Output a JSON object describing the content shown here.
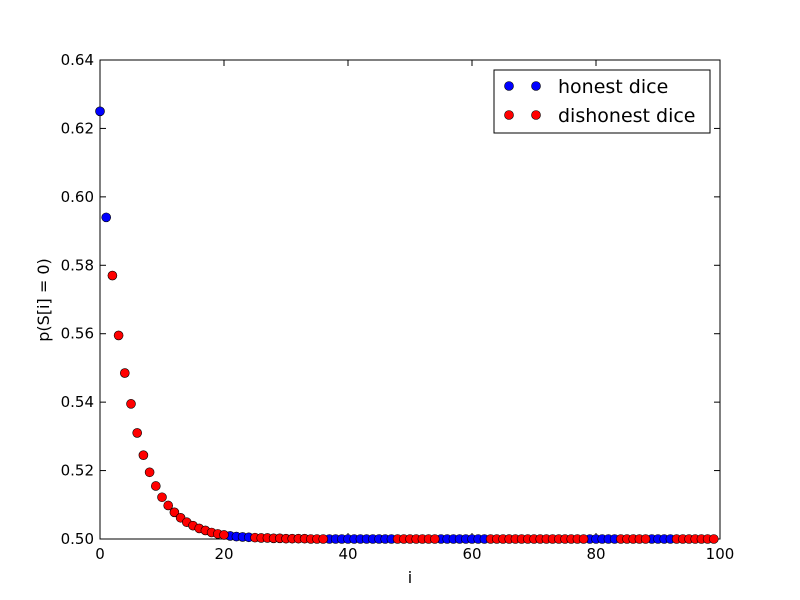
{
  "chart_data": {
    "type": "scatter",
    "xlabel": "i",
    "ylabel": "p(S[i] = 0)",
    "xlim": [
      0,
      100
    ],
    "ylim": [
      0.5,
      0.64
    ],
    "xticks": [
      0,
      20,
      40,
      60,
      80,
      100
    ],
    "xtick_labels": [
      "0",
      "20",
      "40",
      "60",
      "80",
      "100"
    ],
    "yticks": [
      0.5,
      0.52,
      0.54,
      0.56,
      0.58,
      0.6,
      0.62,
      0.64
    ],
    "ytick_labels": [
      "0.50",
      "0.52",
      "0.54",
      "0.56",
      "0.58",
      "0.60",
      "0.62",
      "0.64"
    ],
    "grid": false,
    "legend_position": "top-right",
    "x": [
      0,
      1,
      2,
      3,
      4,
      5,
      6,
      7,
      8,
      9,
      10,
      11,
      12,
      13,
      14,
      15,
      16,
      17,
      18,
      19,
      20,
      21,
      22,
      23,
      24,
      25,
      26,
      27,
      28,
      29,
      30,
      31,
      32,
      33,
      34,
      35,
      36,
      37,
      38,
      39,
      40,
      41,
      42,
      43,
      44,
      45,
      46,
      47,
      48,
      49,
      50,
      51,
      52,
      53,
      54,
      55,
      56,
      57,
      58,
      59,
      60,
      61,
      62,
      63,
      64,
      65,
      66,
      67,
      68,
      69,
      70,
      71,
      72,
      73,
      74,
      75,
      76,
      77,
      78,
      79,
      80,
      81,
      82,
      83,
      84,
      85,
      86,
      87,
      88,
      89,
      90,
      91,
      92,
      93,
      94,
      95,
      96,
      97,
      98,
      99
    ],
    "series": [
      {
        "name": "honest dice",
        "color": "#0000ff",
        "x": [
          0,
          1,
          21,
          22,
          23,
          24,
          37,
          38,
          39,
          40,
          41,
          42,
          43,
          44,
          45,
          46,
          47,
          55,
          56,
          57,
          58,
          59,
          60,
          61,
          62,
          79,
          80,
          81,
          82,
          83,
          89,
          90,
          91,
          92
        ],
        "y": [
          0.625,
          0.594,
          0.5009,
          0.5007,
          0.5006,
          0.5005,
          0.5,
          0.5,
          0.5,
          0.5,
          0.5,
          0.5,
          0.5,
          0.5,
          0.5,
          0.5,
          0.5,
          0.5,
          0.5,
          0.5,
          0.5,
          0.5,
          0.5,
          0.5,
          0.5,
          0.5,
          0.5,
          0.5,
          0.5,
          0.5,
          0.5,
          0.5,
          0.5,
          0.5
        ]
      },
      {
        "name": "dishonest dice",
        "color": "#ff0000",
        "x": [
          2,
          3,
          4,
          5,
          6,
          7,
          8,
          9,
          10,
          11,
          12,
          13,
          14,
          15,
          16,
          17,
          18,
          19,
          20,
          25,
          26,
          27,
          28,
          29,
          30,
          31,
          32,
          33,
          34,
          35,
          36,
          48,
          49,
          50,
          51,
          52,
          53,
          54,
          63,
          64,
          65,
          66,
          67,
          68,
          69,
          70,
          71,
          72,
          73,
          74,
          75,
          76,
          77,
          78,
          84,
          85,
          86,
          87,
          88,
          93,
          94,
          95,
          96,
          97,
          98,
          99
        ],
        "y": [
          0.577,
          0.5595,
          0.5485,
          0.5395,
          0.531,
          0.5245,
          0.5195,
          0.5155,
          0.5122,
          0.5098,
          0.5078,
          0.5062,
          0.5049,
          0.5039,
          0.5031,
          0.5025,
          0.5019,
          0.5015,
          0.5012,
          0.5004,
          0.5003,
          0.5003,
          0.5002,
          0.5002,
          0.5001,
          0.5001,
          0.5001,
          0.5001,
          0.5,
          0.5,
          0.5,
          0.5,
          0.5,
          0.5,
          0.5,
          0.5,
          0.5,
          0.5,
          0.5,
          0.5,
          0.5,
          0.5,
          0.5,
          0.5,
          0.5,
          0.5,
          0.5,
          0.5,
          0.5,
          0.5,
          0.5,
          0.5,
          0.5,
          0.5,
          0.5,
          0.5,
          0.5,
          0.5,
          0.5,
          0.5,
          0.5,
          0.5,
          0.5,
          0.5,
          0.5,
          0.5
        ]
      }
    ]
  }
}
